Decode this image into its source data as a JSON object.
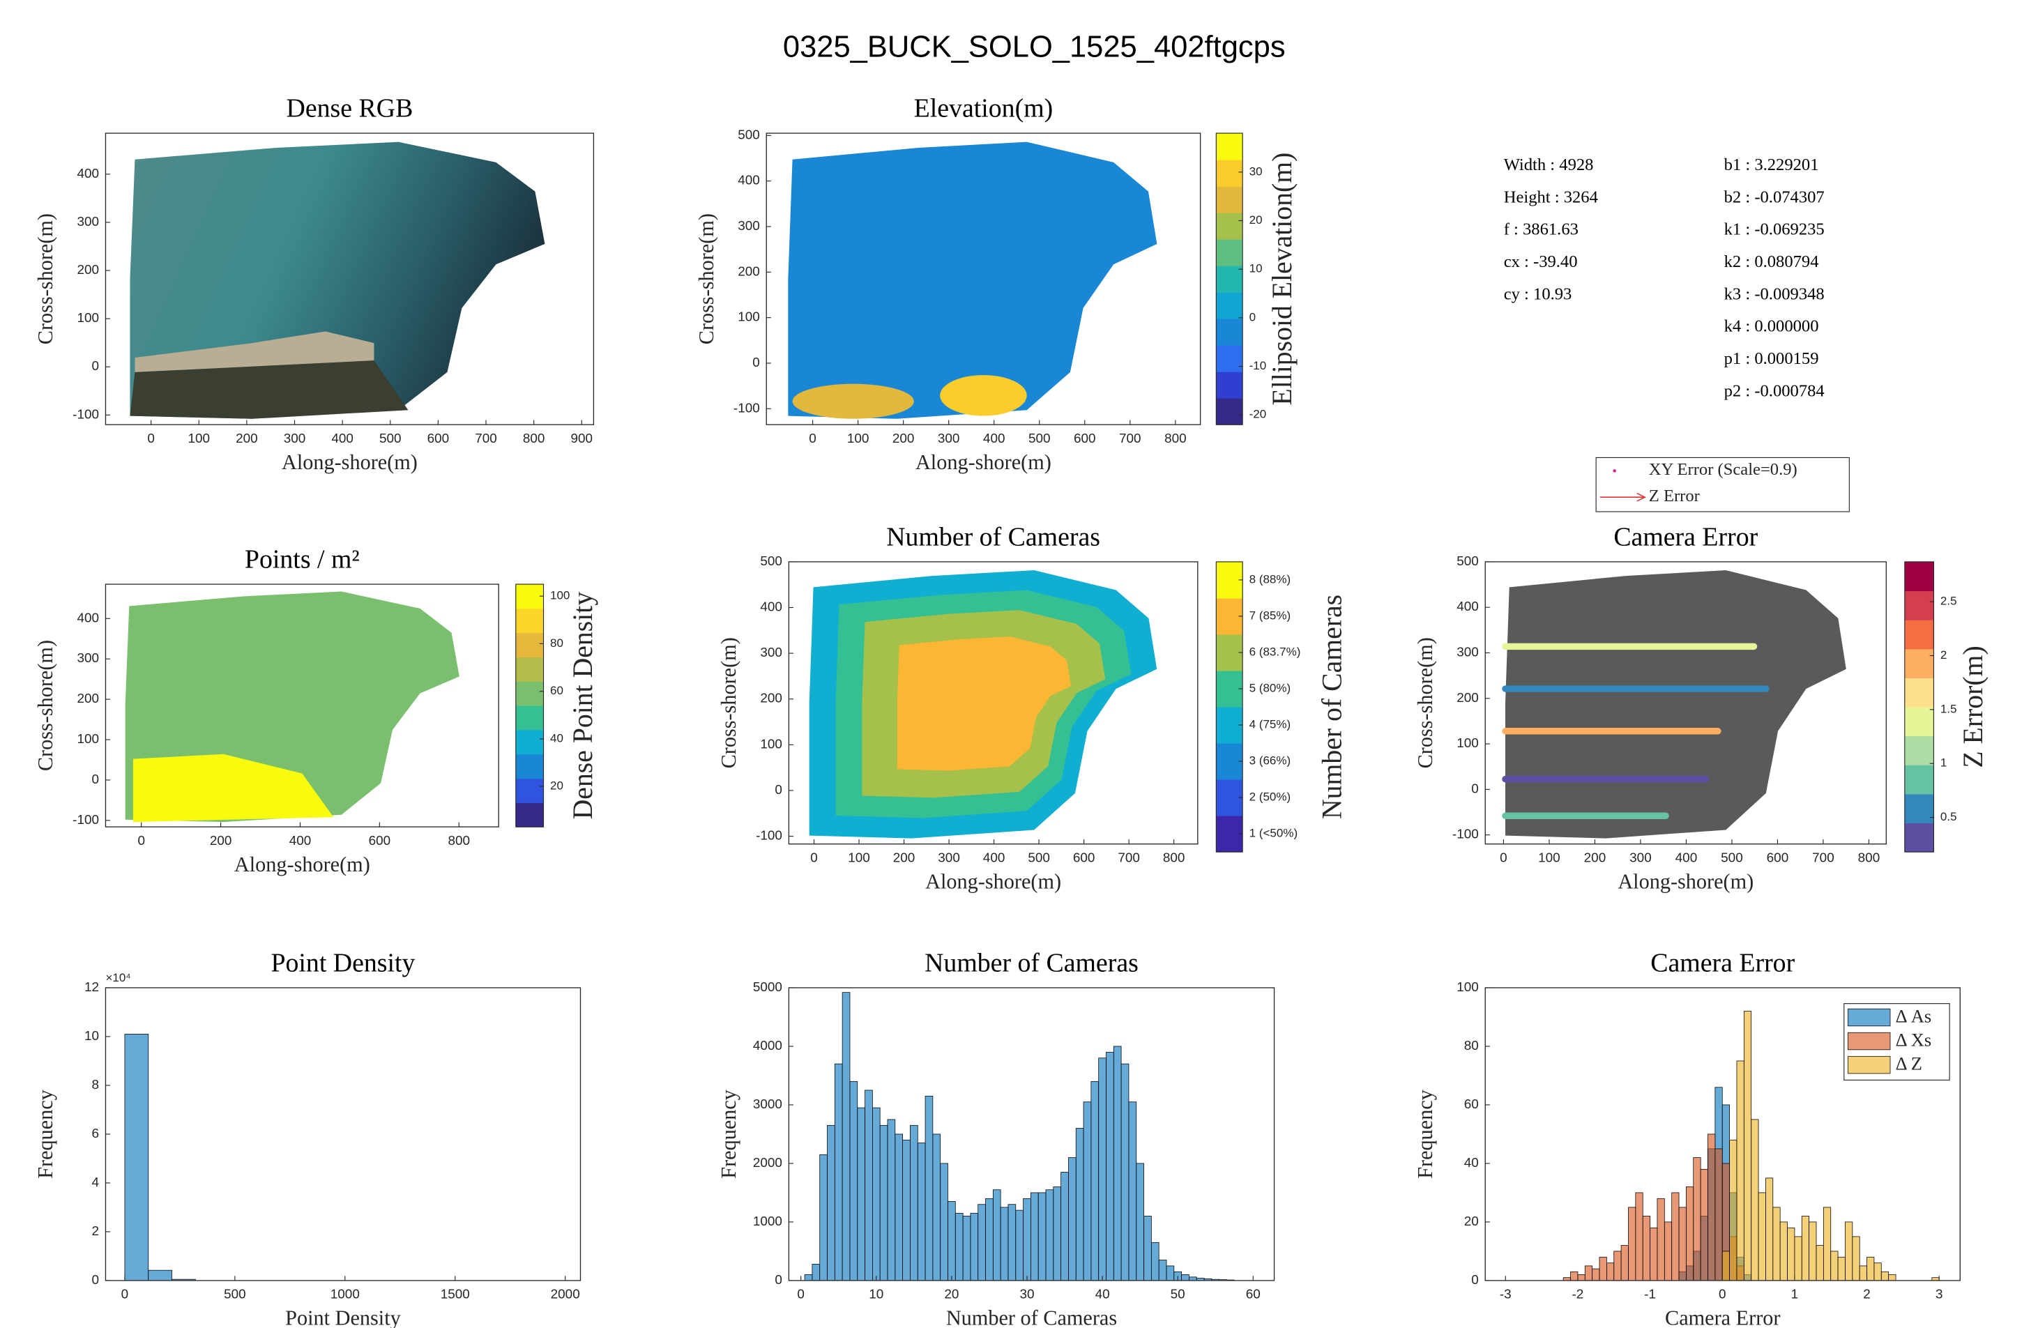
{
  "figure_title": "0325_BUCK_SOLO_1525_402ftgcps",
  "camera_parameters": {
    "left": [
      "Width : 4928",
      "Height : 3264",
      "f : 3861.63",
      "cx : -39.40",
      "cy : 10.93"
    ],
    "right": [
      "b1 : 3.229201",
      "b2 : -0.074307",
      "k1 : -0.069235",
      "k2 : 0.080794",
      "k3 : -0.009348",
      "k4 : 0.000000",
      "p1 : 0.000159",
      "p2 : -0.000784"
    ]
  },
  "chart_data": [
    {
      "type": "map",
      "title": "Dense RGB",
      "xlabel": "Along-shore(m)",
      "ylabel": "Cross-shore(m)",
      "xlim": [
        -95,
        925
      ],
      "xticks": [
        0,
        100,
        200,
        300,
        400,
        500,
        600,
        700,
        800,
        900
      ],
      "ylim": [
        -120,
        485
      ],
      "yticks": [
        -100,
        0,
        100,
        200,
        300,
        400
      ]
    },
    {
      "type": "map",
      "title": "Elevation(m)",
      "xlabel": "Along-shore(m)",
      "ylabel": "Cross-shore(m)",
      "xlim": [
        -102,
        855
      ],
      "xticks": [
        0,
        100,
        200,
        300,
        400,
        500,
        600,
        700,
        800
      ],
      "ylim": [
        -135,
        505
      ],
      "yticks": [
        -100,
        0,
        100,
        200,
        300,
        400,
        500
      ],
      "colorbar_label": "Ellipsoid Elevation(m)",
      "clim": [
        -22,
        38
      ],
      "cticks": [
        -20,
        -10,
        0,
        10,
        20,
        30
      ],
      "colormap": [
        "#352a87",
        "#2f3fd0",
        "#2e6ef0",
        "#1a86d6",
        "#10a5d3",
        "#24b7b0",
        "#5ebf80",
        "#a5c04b",
        "#e2b93c",
        "#fbcd2c",
        "#f9fb0e"
      ]
    },
    {
      "type": "map",
      "title": "Points / m²",
      "xlabel": "Along-shore(m)",
      "ylabel": "Cross-shore(m)",
      "xlim": [
        -90,
        900
      ],
      "xticks": [
        0,
        200,
        400,
        600,
        800
      ],
      "ylim": [
        -116,
        485
      ],
      "yticks": [
        -100,
        0,
        100,
        200,
        300,
        400
      ],
      "colorbar_label": "Dense Point Density",
      "clim": [
        3,
        105
      ],
      "cticks": [
        20,
        40,
        60,
        80,
        100
      ],
      "colormap": [
        "#352a87",
        "#2f55e0",
        "#1a86d6",
        "#10aed1",
        "#35c093",
        "#79bf6e",
        "#b5bd4c",
        "#e6b83c",
        "#fbd52a",
        "#f9fb0e"
      ]
    },
    {
      "type": "map",
      "title": "Number of Cameras",
      "xlabel": "Along-shore(m)",
      "ylabel": "Cross-shore(m)",
      "xlim": [
        -56,
        853
      ],
      "xticks": [
        0,
        100,
        200,
        300,
        400,
        500,
        600,
        700,
        800
      ],
      "ylim": [
        -117,
        500
      ],
      "yticks": [
        -100,
        0,
        100,
        200,
        300,
        400,
        500
      ],
      "colorbar_label": "Number of Cameras",
      "clim": [
        0.5,
        8.5
      ],
      "cticks": [
        {
          "value": 1,
          "label": "1 (<50%)"
        },
        {
          "value": 2,
          "label": "2 (50%)"
        },
        {
          "value": 3,
          "label": "3 (66%)"
        },
        {
          "value": 4,
          "label": "4 (75%)"
        },
        {
          "value": 5,
          "label": "5 (80%)"
        },
        {
          "value": 6,
          "label": "6 (83.7%)"
        },
        {
          "value": 7,
          "label": "7 (85%)"
        },
        {
          "value": 8,
          "label": "8 (88%)"
        }
      ],
      "colormap": [
        "#3e26a8",
        "#2f55e0",
        "#1a86d6",
        "#10aed1",
        "#35c093",
        "#a5c04b",
        "#fbb634",
        "#f9fb0e"
      ]
    },
    {
      "type": "map",
      "title": "Camera Error",
      "xlabel": "Along-shore(m)",
      "ylabel": "Cross-shore(m)",
      "xlim": [
        -40,
        838
      ],
      "xticks": [
        0,
        100,
        200,
        300,
        400,
        500,
        600,
        700,
        800
      ],
      "ylim": [
        -120,
        500
      ],
      "yticks": [
        -100,
        0,
        100,
        200,
        300,
        400,
        500
      ],
      "colorbar_label": "Z Error(m)",
      "clim": [
        0.18,
        2.87
      ],
      "cticks": [
        0.5,
        1,
        1.5,
        2,
        2.5
      ],
      "colormap": [
        "#5e4fa2",
        "#3288bd",
        "#66c2a5",
        "#abdda4",
        "#e6f598",
        "#fee08b",
        "#fdae61",
        "#f46d43",
        "#d53e4f",
        "#9e0142"
      ],
      "legend": [
        "XY Error (Scale=0.9)",
        "Z Error"
      ]
    },
    {
      "type": "histogram",
      "title": "Point Density",
      "xlabel": "Point Density",
      "ylabel": "Frequency",
      "xlim": [
        -87,
        2069
      ],
      "xticks": [
        0,
        500,
        1000,
        1500,
        2000
      ],
      "ylim": [
        0,
        120000
      ],
      "yticks": [
        0,
        {
          "value": 20000,
          "label": "2"
        },
        {
          "value": 40000,
          "label": "4"
        },
        {
          "value": 60000,
          "label": "6"
        },
        {
          "value": 80000,
          "label": "8"
        },
        {
          "value": 100000,
          "label": "10"
        },
        {
          "value": 120000,
          "label": "12"
        }
      ],
      "y_exponent": "×10⁴",
      "color": "#0072bd",
      "face_alpha": 0.6,
      "bins": [
        0,
        107,
        214,
        321
      ],
      "values": [
        101000,
        4200,
        500
      ]
    },
    {
      "type": "histogram",
      "title": "Number of Cameras",
      "xlabel": "Number of Cameras",
      "ylabel": "Frequency",
      "xlim": [
        -1.6,
        62.8
      ],
      "xticks": [
        0,
        10,
        20,
        30,
        40,
        50,
        60
      ],
      "ylim": [
        0,
        5000
      ],
      "yticks": [
        0,
        1000,
        2000,
        3000,
        4000,
        5000
      ],
      "color": "#0072bd",
      "face_alpha": 0.6,
      "bins": [
        0.5,
        1.5,
        2.5,
        3.5,
        4.5,
        5.5,
        6.5,
        7.5,
        8.5,
        9.5,
        10.5,
        11.5,
        12.5,
        13.5,
        14.5,
        15.5,
        16.5,
        17.5,
        18.5,
        19.5,
        20.5,
        21.5,
        22.5,
        23.5,
        24.5,
        25.5,
        26.5,
        27.5,
        28.5,
        29.5,
        30.5,
        31.5,
        32.5,
        33.5,
        34.5,
        35.5,
        36.5,
        37.5,
        38.5,
        39.5,
        40.5,
        41.5,
        42.5,
        43.5,
        44.5,
        45.5,
        46.5,
        47.5,
        48.5,
        49.5,
        50.5,
        51.5,
        52.5,
        53.5,
        54.5,
        55.5,
        56.5,
        57.5
      ],
      "values": [
        100,
        280,
        2150,
        2650,
        3700,
        4920,
        3400,
        2950,
        3250,
        2950,
        2650,
        2750,
        2500,
        2400,
        2650,
        2350,
        3150,
        2500,
        2000,
        1350,
        1150,
        1100,
        1150,
        1300,
        1400,
        1550,
        1250,
        1300,
        1200,
        1400,
        1500,
        1500,
        1550,
        1600,
        1850,
        2100,
        2600,
        3050,
        3400,
        3800,
        3900,
        4000,
        3700,
        3050,
        2000,
        1100,
        650,
        350,
        250,
        150,
        100,
        60,
        40,
        30,
        20,
        15,
        10
      ]
    },
    {
      "type": "histogram",
      "title": "Camera Error",
      "xlabel": "Camera Error",
      "ylabel": "Frequency",
      "xlim": [
        -3.28,
        3.29
      ],
      "xticks": [
        -3,
        -2,
        -1,
        0,
        1,
        2,
        3
      ],
      "ylim": [
        0,
        100
      ],
      "yticks": [
        0,
        20,
        40,
        60,
        80,
        100
      ],
      "face_alpha": 0.6,
      "legend_position": "northeast",
      "bins": [
        -3.0,
        -2.9,
        -2.8,
        -2.7,
        -2.6,
        -2.5,
        -2.4,
        -2.3,
        -2.2,
        -2.1,
        -2.0,
        -1.9,
        -1.8,
        -1.7,
        -1.6,
        -1.5,
        -1.4,
        -1.3,
        -1.2,
        -1.1,
        -1.0,
        -0.9,
        -0.8,
        -0.7,
        -0.6,
        -0.5,
        -0.4,
        -0.3,
        -0.2,
        -0.1,
        0.0,
        0.1,
        0.2,
        0.3,
        0.4,
        0.5,
        0.6,
        0.7,
        0.8,
        0.9,
        1.0,
        1.1,
        1.2,
        1.3,
        1.4,
        1.5,
        1.6,
        1.7,
        1.8,
        1.9,
        2.0,
        2.1,
        2.2,
        2.3,
        2.4,
        2.5,
        2.6,
        2.7,
        2.8,
        2.9,
        3.0
      ],
      "series": [
        {
          "name": "Δ As",
          "color": "#0072bd",
          "values": [
            0,
            0,
            0,
            0,
            0,
            0,
            0,
            0,
            0,
            0,
            0,
            0,
            0,
            0,
            0,
            0,
            0,
            0,
            0,
            0,
            0,
            0,
            0,
            0,
            3,
            5,
            10,
            22,
            45,
            66,
            60,
            30,
            8,
            2,
            0,
            0,
            0,
            0,
            0,
            0,
            0,
            0,
            0,
            0,
            0,
            0,
            0,
            0,
            0,
            0,
            0,
            0,
            0,
            0,
            0,
            0,
            0,
            0,
            0,
            0
          ]
        },
        {
          "name": "Δ Xs",
          "color": "#d95319",
          "values": [
            0,
            0,
            0,
            0,
            0,
            0,
            0,
            0,
            1,
            3,
            2,
            5,
            4,
            8,
            6,
            10,
            12,
            25,
            30,
            22,
            18,
            28,
            20,
            30,
            25,
            32,
            42,
            38,
            50,
            45,
            40,
            15,
            5,
            0,
            0,
            0,
            0,
            0,
            0,
            0,
            0,
            0,
            0,
            0,
            0,
            0,
            0,
            0,
            0,
            0,
            0,
            0,
            0,
            0,
            0,
            0,
            0,
            0,
            0,
            0
          ]
        },
        {
          "name": "Δ Z",
          "color": "#edb120",
          "values": [
            0,
            0,
            0,
            0,
            0,
            0,
            0,
            0,
            0,
            0,
            0,
            0,
            0,
            0,
            0,
            0,
            0,
            0,
            0,
            0,
            0,
            0,
            0,
            0,
            0,
            0,
            0,
            0,
            0,
            0,
            10,
            48,
            75,
            92,
            55,
            30,
            35,
            25,
            20,
            18,
            15,
            22,
            20,
            12,
            25,
            10,
            8,
            20,
            15,
            5,
            8,
            6,
            3,
            2,
            0,
            0,
            0,
            0,
            0,
            1
          ]
        }
      ]
    }
  ]
}
